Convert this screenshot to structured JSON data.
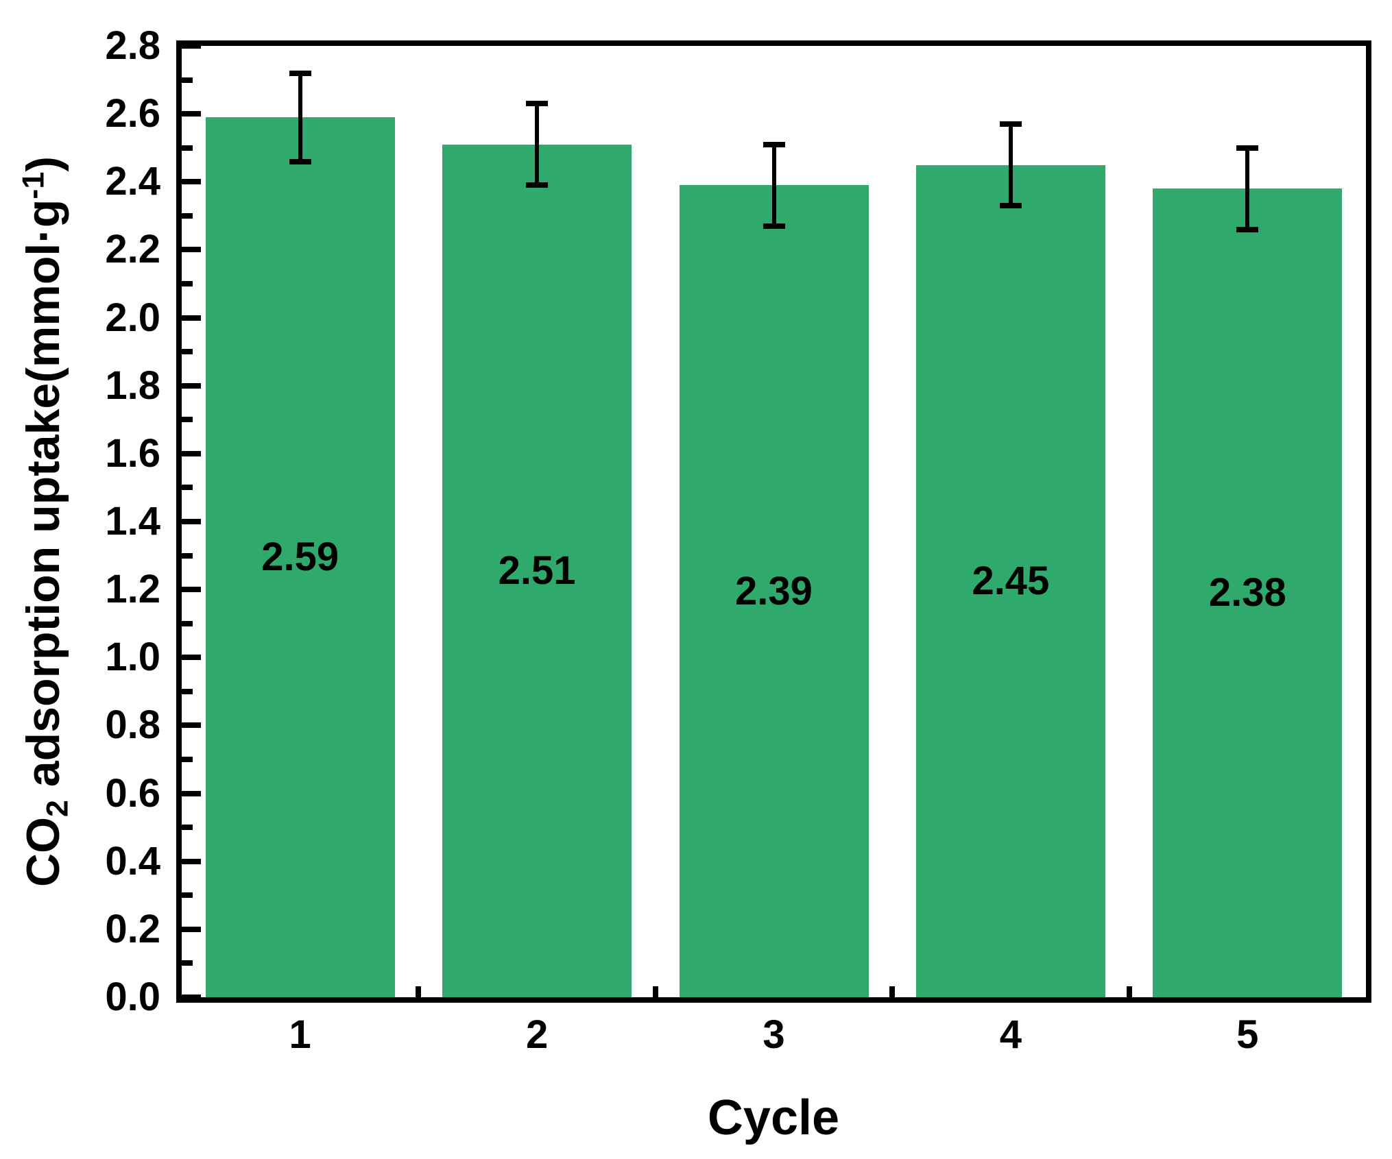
{
  "figure": {
    "xlabel": "Cycle",
    "ylabel_pre": "CO",
    "ylabel_sub": "2",
    "ylabel_mid": " adsorption uptake(mmol·g",
    "ylabel_sup": "-1",
    "ylabel_post": ")"
  },
  "chart_data": {
    "type": "bar",
    "title": "",
    "xlabel": "Cycle",
    "ylabel": "CO2 adsorption uptake(mmol·g-1)",
    "categories": [
      "1",
      "2",
      "3",
      "4",
      "5"
    ],
    "values": [
      2.59,
      2.51,
      2.39,
      2.45,
      2.38
    ],
    "errors": [
      0.13,
      0.12,
      0.12,
      0.12,
      0.12
    ],
    "bar_labels": [
      "2.59",
      "2.51",
      "2.39",
      "2.45",
      "2.38"
    ],
    "ylim": [
      0,
      2.8
    ],
    "xlim": [
      0.5,
      5.5
    ],
    "y_major_step": 0.2,
    "y_minor_step": 0.1,
    "x_minor_positions": [
      1.5,
      2.5,
      3.5,
      4.5
    ],
    "y_tick_labels": [
      "0.0",
      "0.2",
      "0.4",
      "0.6",
      "0.8",
      "1.0",
      "1.2",
      "1.4",
      "1.6",
      "1.8",
      "2.0",
      "2.2",
      "2.4",
      "2.6",
      "2.8"
    ],
    "bar_color": "#2fa96c",
    "axis_color": "#000000",
    "label_color": "#000000",
    "bar_width_units": 0.8,
    "grid": false,
    "legend": null,
    "error_bar_caps": true,
    "tick_direction": "in"
  }
}
